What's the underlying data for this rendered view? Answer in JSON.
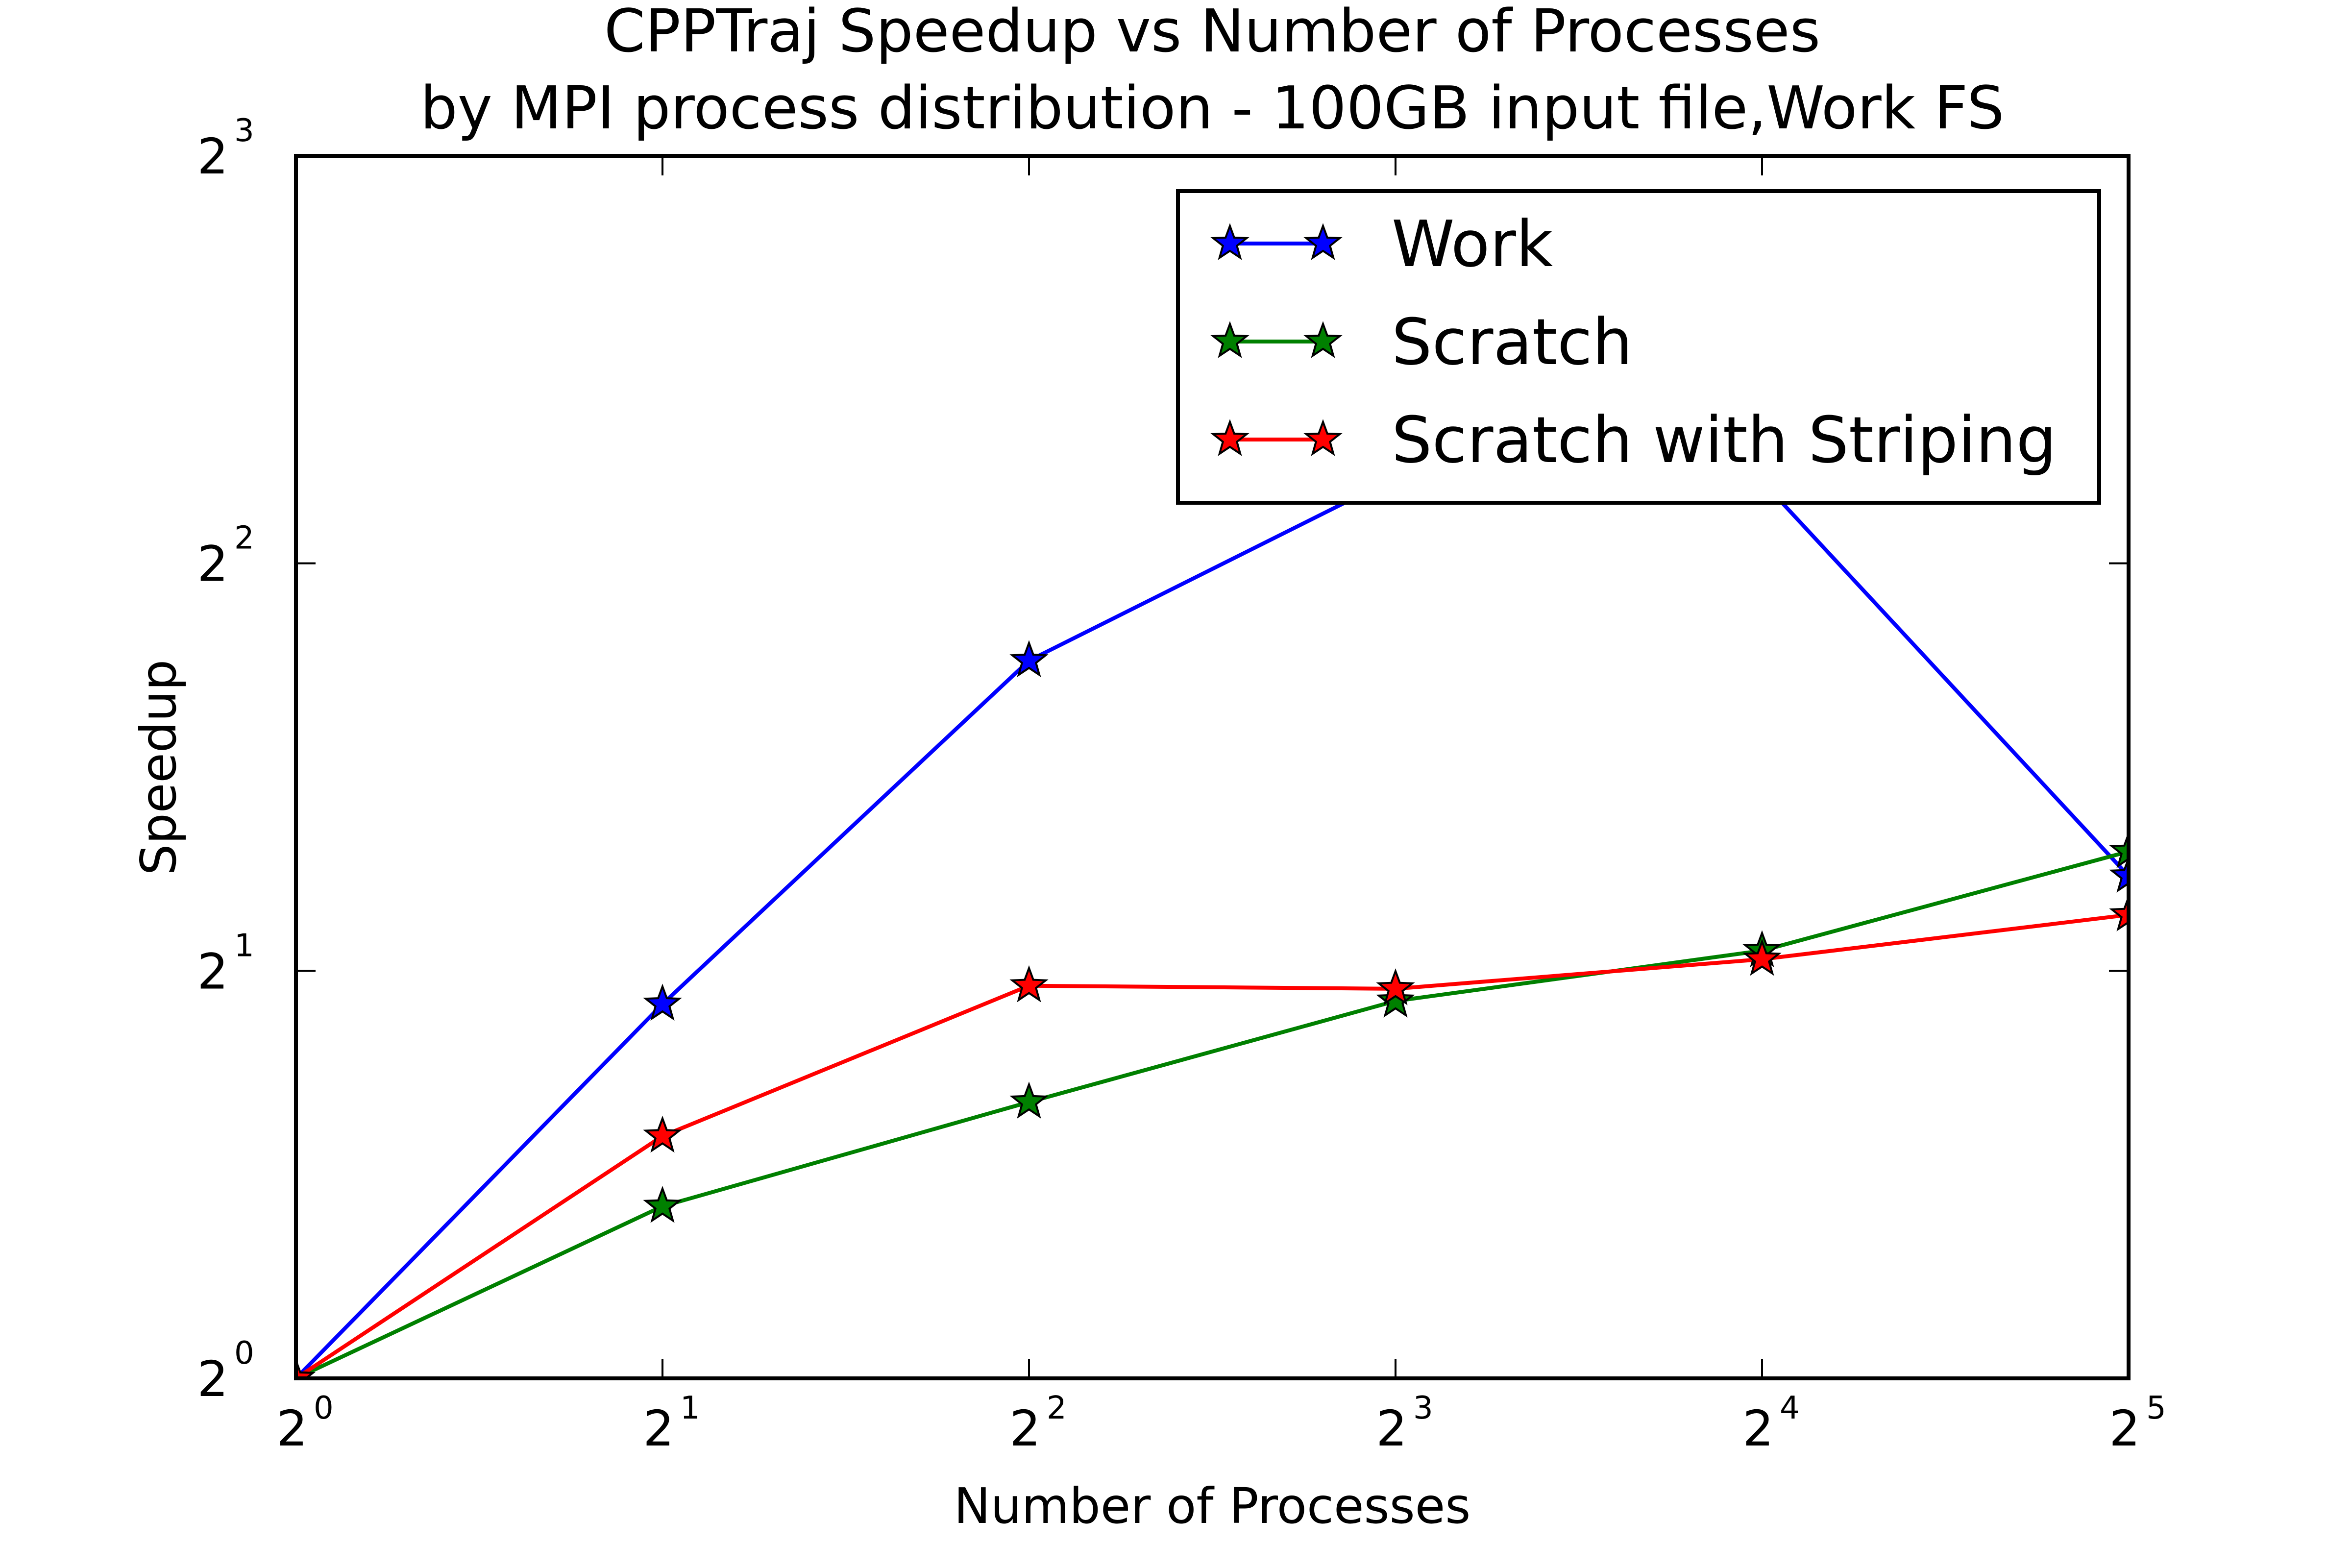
{
  "chart_data": {
    "type": "line",
    "title": "CPPTraj Speedup vs Number of Processes",
    "subtitle": "by MPI process distribution - 100GB input file,Work FS",
    "xlabel": "Number of Processes",
    "ylabel": "Speedup",
    "xscale": "log2",
    "yscale": "log2",
    "xlim": [
      1,
      32
    ],
    "ylim": [
      1,
      8
    ],
    "x_ticks": [
      {
        "base": "2",
        "exp": "0"
      },
      {
        "base": "2",
        "exp": "1"
      },
      {
        "base": "2",
        "exp": "2"
      },
      {
        "base": "2",
        "exp": "3"
      },
      {
        "base": "2",
        "exp": "4"
      },
      {
        "base": "2",
        "exp": "5"
      }
    ],
    "y_ticks": [
      {
        "base": "2",
        "exp": "0"
      },
      {
        "base": "2",
        "exp": "1"
      },
      {
        "base": "2",
        "exp": "2"
      },
      {
        "base": "2",
        "exp": "3"
      }
    ],
    "x": [
      1,
      2,
      4,
      8,
      16,
      32
    ],
    "grid": false,
    "legend_position": "top-right",
    "series": [
      {
        "name": "Work",
        "color": "#0000ff",
        "marker": "star",
        "values": [
          1.0,
          1.89,
          3.39,
          4.63,
          4.6,
          2.35
        ]
      },
      {
        "name": "Scratch",
        "color": "#008000",
        "marker": "star",
        "values": [
          1.0,
          1.34,
          1.6,
          1.9,
          2.07,
          2.45
        ]
      },
      {
        "name": "Scratch with Striping",
        "color": "#ff0000",
        "marker": "star",
        "values": [
          1.0,
          1.51,
          1.95,
          1.94,
          2.04,
          2.2
        ]
      }
    ]
  }
}
